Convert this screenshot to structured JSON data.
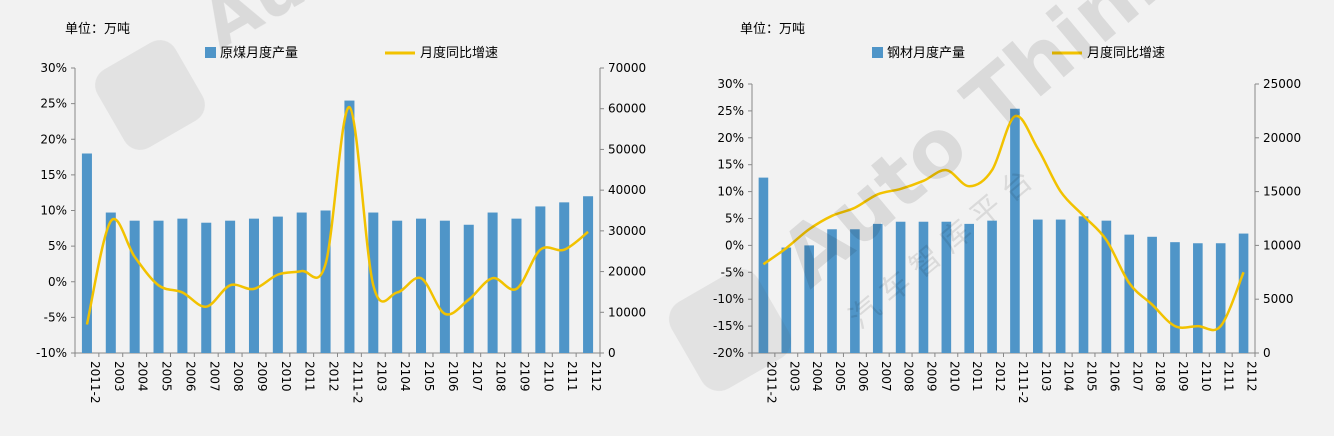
{
  "watermark": {
    "text": "Auto Thinker",
    "subtext": "汽 车 智 库 平 台",
    "icon": "eye-icon"
  },
  "chart_data": [
    {
      "type": "bar+line",
      "unit_label": "单位：万吨",
      "categories": [
        "2011-2",
        "2003",
        "2004",
        "2005",
        "2006",
        "2007",
        "2008",
        "2009",
        "2010",
        "2011",
        "2012",
        "2111-2",
        "2103",
        "2104",
        "2105",
        "2106",
        "2107",
        "2108",
        "2109",
        "2110",
        "2111",
        "2112"
      ],
      "category_labels": [
        "2011-2",
        "2003",
        "2004",
        "2005",
        "2006",
        "2007",
        "2008",
        "2009",
        "2010",
        "2011",
        "2012",
        "2111-2",
        "2103",
        "2104",
        "2105",
        "2106",
        "2107",
        "2108",
        "2109",
        "2110",
        "2111",
        "2112"
      ],
      "bar_series": {
        "name": "原煤月度产量",
        "color": "#4f95c8",
        "axis": "right",
        "values": [
          49000,
          34500,
          32500,
          32500,
          33000,
          32000,
          32500,
          33000,
          33500,
          34500,
          35000,
          62000,
          34500,
          32500,
          33000,
          32500,
          31500,
          34500,
          33000,
          36000,
          37000,
          38500
        ]
      },
      "line_series": {
        "name": "月度同比增速",
        "color": "#f2c200",
        "axis": "left",
        "values": [
          -6.0,
          8.5,
          3.5,
          -0.5,
          -1.5,
          -3.5,
          -0.5,
          -1.0,
          1.0,
          1.5,
          2.5,
          24.5,
          -0.5,
          -1.5,
          0.5,
          -4.5,
          -2.5,
          0.5,
          -1.0,
          4.5,
          4.5,
          7.0
        ]
      },
      "y_left": {
        "min": -10,
        "max": 30,
        "step": 5,
        "format": "percent",
        "ticks": [
          "-10%",
          "-5%",
          "0%",
          "5%",
          "10%",
          "15%",
          "20%",
          "25%",
          "30%"
        ]
      },
      "y_right": {
        "min": 0,
        "max": 70000,
        "step": 10000,
        "ticks": [
          "0",
          "10000",
          "20000",
          "30000",
          "40000",
          "50000",
          "60000",
          "70000"
        ]
      },
      "legend_position": "top"
    },
    {
      "type": "bar+line",
      "unit_label": "单位：万吨",
      "categories": [
        "2011-2",
        "2003",
        "2004",
        "2005",
        "2006",
        "2007",
        "2008",
        "2009",
        "2010",
        "2011",
        "2012",
        "2111-2",
        "2103",
        "2104",
        "2105",
        "2106",
        "2107",
        "2108",
        "2109",
        "2110",
        "2111",
        "2112"
      ],
      "category_labels": [
        "2011-2",
        "2003",
        "2004",
        "2005",
        "2006",
        "2007",
        "2008",
        "2009",
        "2010",
        "2011",
        "2012",
        "2111-2",
        "2103",
        "2104",
        "2105",
        "2106",
        "2107",
        "2108",
        "2109",
        "2110",
        "2111",
        "2112"
      ],
      "bar_series": {
        "name": "钢材月度产量",
        "color": "#4f95c8",
        "axis": "right",
        "values": [
          16300,
          9800,
          10000,
          11500,
          11500,
          12000,
          12200,
          12200,
          12200,
          12000,
          12300,
          22700,
          12400,
          12400,
          12700,
          12300,
          11000,
          10800,
          10300,
          10200,
          10200,
          11100
        ]
      },
      "line_series": {
        "name": "月度同比增速",
        "color": "#f2c200",
        "axis": "left",
        "values": [
          -3.5,
          -0.5,
          3.0,
          5.5,
          7.0,
          9.5,
          10.5,
          12.0,
          14.0,
          11.0,
          14.0,
          24.0,
          18.0,
          10.0,
          5.5,
          1.0,
          -7.0,
          -11.0,
          -15.0,
          -15.0,
          -15.0,
          -5.0
        ]
      },
      "y_left": {
        "min": -20,
        "max": 30,
        "step": 5,
        "format": "percent",
        "ticks": [
          "-20%",
          "-15%",
          "-10%",
          "-5%",
          "0%",
          "5%",
          "10%",
          "15%",
          "20%",
          "25%",
          "30%"
        ]
      },
      "y_right": {
        "min": 0,
        "max": 25000,
        "step": 5000,
        "ticks": [
          "0",
          "5000",
          "10000",
          "15000",
          "20000",
          "25000"
        ]
      },
      "legend_position": "top"
    }
  ]
}
